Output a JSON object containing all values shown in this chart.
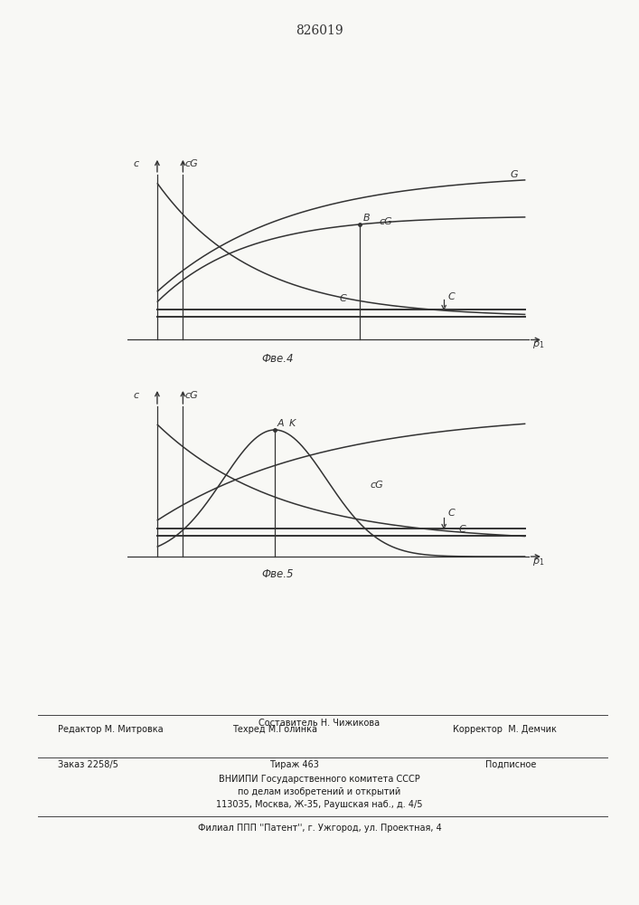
{
  "title": "826019",
  "fig4_caption": "Фве.4",
  "fig5_caption": "Фве.5",
  "bg_color": "#f8f8f5",
  "line_color": "#333333",
  "footer_sestavitel": "Составитель Н. Чижикова",
  "footer_editor": "Редактор М. Митровка",
  "footer_tech": "Техред М.Голинка",
  "footer_corrector": "Корректор  М. Демчик",
  "footer_order": "Заказ 2258/5",
  "footer_tirazh": "Тираж 463",
  "footer_podpisnoe": "Подписное",
  "footer_vniip": "ВНИИПИ Государственного комитета СССР",
  "footer_podel": "по делам изобретений и открытий",
  "footer_addr": "113035, Москва, Ж-35, Раушская наб., д. 4/5",
  "footer_filial": "Филиал ППП ''Патент'', г. Ужгород, ул. Проектная, 4"
}
